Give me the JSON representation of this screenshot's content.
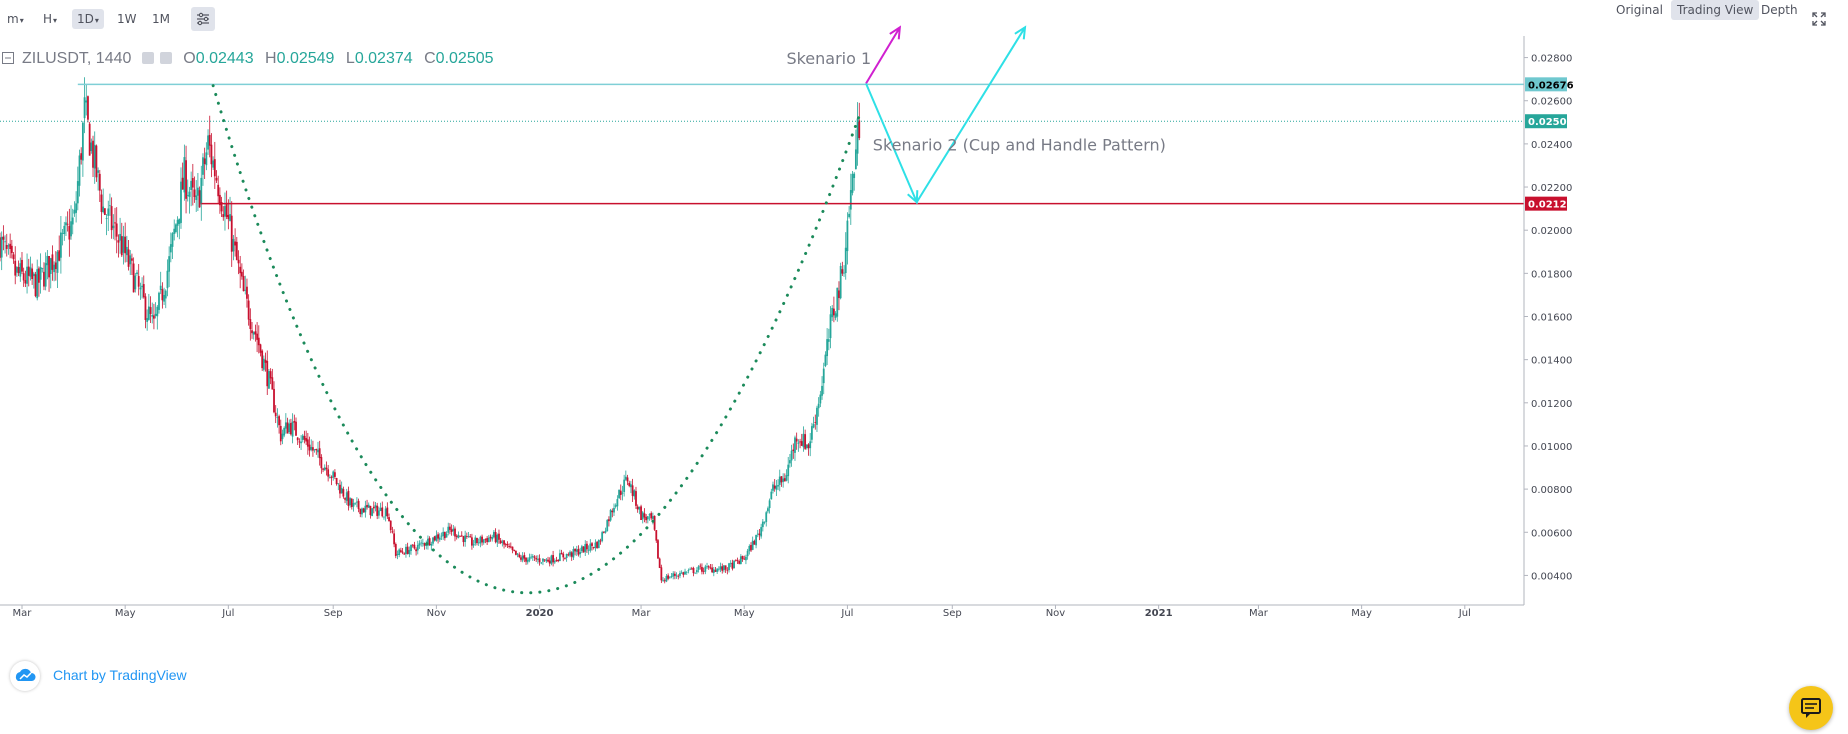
{
  "toolbar": {
    "intervals": [
      {
        "label": "m",
        "dropdown": true
      },
      {
        "label": "H",
        "dropdown": true
      },
      {
        "label": "1D",
        "dropdown": true,
        "active": true
      },
      {
        "label": "1W",
        "dropdown": false
      },
      {
        "label": "1M",
        "dropdown": false
      }
    ],
    "views": [
      {
        "label": "Original",
        "active": false
      },
      {
        "label": "Trading View",
        "active": true
      },
      {
        "label": "Depth",
        "active": false
      }
    ]
  },
  "legend": {
    "symbol": "ZILUSDT, 1440",
    "open_label": "O",
    "open": "0.02443",
    "high_label": "H",
    "high": "0.02549",
    "low_label": "L",
    "low": "0.02374",
    "close_label": "C",
    "close": "0.02505"
  },
  "attribution": "Chart by TradingView",
  "chart_data": {
    "type": "candlestick",
    "title": "",
    "ylim": [
      0.003,
      0.029
    ],
    "y_ticks": [
      "0.02800",
      "0.02600",
      "0.02400",
      "0.02200",
      "0.02000",
      "0.01800",
      "0.01600",
      "0.01400",
      "0.01200",
      "0.01000",
      "0.00800",
      "0.00600",
      "0.00400"
    ],
    "x_ticks": [
      {
        "label": "Mar",
        "date": "2019-03-01"
      },
      {
        "label": "May",
        "date": "2019-05-01"
      },
      {
        "label": "Jul",
        "date": "2019-07-01"
      },
      {
        "label": "Sep",
        "date": "2019-09-01"
      },
      {
        "label": "Nov",
        "date": "2019-11-01"
      },
      {
        "label": "2020",
        "date": "2020-01-01",
        "bold": true
      },
      {
        "label": "Mar",
        "date": "2020-03-01"
      },
      {
        "label": "May",
        "date": "2020-05-01"
      },
      {
        "label": "Jul",
        "date": "2020-07-01"
      },
      {
        "label": "Sep",
        "date": "2020-09-01"
      },
      {
        "label": "Nov",
        "date": "2020-11-01"
      },
      {
        "label": "2021",
        "date": "2021-01-01",
        "bold": true
      },
      {
        "label": "Mar",
        "date": "2021-03-01"
      },
      {
        "label": "May",
        "date": "2021-05-01"
      },
      {
        "label": "Jul",
        "date": "2021-07-01"
      }
    ],
    "xlim": [
      "2019-02-16",
      "2021-08-05"
    ],
    "price_path": [
      [
        "2019-02-16",
        0.0195
      ],
      [
        "2019-02-25",
        0.018
      ],
      [
        "2019-03-10",
        0.0175
      ],
      [
        "2019-03-22",
        0.019
      ],
      [
        "2019-04-01",
        0.0205
      ],
      [
        "2019-04-07",
        0.0255
      ],
      [
        "2019-04-18",
        0.021
      ],
      [
        "2019-04-28",
        0.0195
      ],
      [
        "2019-05-10",
        0.017
      ],
      [
        "2019-05-18",
        0.0155
      ],
      [
        "2019-05-27",
        0.0185
      ],
      [
        "2019-06-05",
        0.0225
      ],
      [
        "2019-06-12",
        0.021
      ],
      [
        "2019-06-19",
        0.024
      ],
      [
        "2019-06-24",
        0.0225
      ],
      [
        "2019-07-02",
        0.02
      ],
      [
        "2019-07-10",
        0.017
      ],
      [
        "2019-07-18",
        0.015
      ],
      [
        "2019-07-25",
        0.013
      ],
      [
        "2019-08-01",
        0.0105
      ],
      [
        "2019-08-06",
        0.011
      ],
      [
        "2019-08-18",
        0.01
      ],
      [
        "2019-08-30",
        0.0088
      ],
      [
        "2019-09-12",
        0.0072
      ],
      [
        "2019-09-25",
        0.007
      ],
      [
        "2019-10-03",
        0.007
      ],
      [
        "2019-10-08",
        0.005
      ],
      [
        "2019-10-20",
        0.0053
      ],
      [
        "2019-11-01",
        0.0058
      ],
      [
        "2019-11-10",
        0.0061
      ],
      [
        "2019-11-22",
        0.0055
      ],
      [
        "2019-12-05",
        0.0058
      ],
      [
        "2019-12-20",
        0.0048
      ],
      [
        "2020-01-05",
        0.0047
      ],
      [
        "2020-01-20",
        0.005
      ],
      [
        "2020-02-05",
        0.0055
      ],
      [
        "2020-02-15",
        0.0075
      ],
      [
        "2020-02-22",
        0.0085
      ],
      [
        "2020-03-01",
        0.0068
      ],
      [
        "2020-03-08",
        0.0065
      ],
      [
        "2020-03-13",
        0.0038
      ],
      [
        "2020-03-20",
        0.004
      ],
      [
        "2020-04-05",
        0.0043
      ],
      [
        "2020-04-20",
        0.0043
      ],
      [
        "2020-05-01",
        0.0048
      ],
      [
        "2020-05-10",
        0.006
      ],
      [
        "2020-05-18",
        0.008
      ],
      [
        "2020-05-25",
        0.0085
      ],
      [
        "2020-06-01",
        0.0105
      ],
      [
        "2020-06-08",
        0.01
      ],
      [
        "2020-06-15",
        0.0125
      ],
      [
        "2020-06-22",
        0.016
      ],
      [
        "2020-06-28",
        0.018
      ],
      [
        "2020-07-02",
        0.021
      ],
      [
        "2020-07-05",
        0.023
      ],
      [
        "2020-07-08",
        0.02505
      ]
    ],
    "horizontal_lines": [
      {
        "price": 0.02676,
        "label": "0.02676",
        "color": "#7fcfd6",
        "style": "solid",
        "start": "2019-04-03"
      },
      {
        "price": 0.02505,
        "label": "0.02505",
        "color": "#26a69a",
        "style": "dotted"
      },
      {
        "price": 0.02123,
        "label": "0.02123",
        "color": "#c8102e",
        "style": "solid",
        "start": "2019-06-15"
      }
    ],
    "cup_curve": {
      "color": "#1b8a5a",
      "points": [
        [
          "2019-06-22",
          0.0267
        ],
        [
          "2019-12-22",
          0.0032
        ],
        [
          "2020-07-08",
          0.0253
        ]
      ]
    },
    "annotations": [
      {
        "text": "Skenario 1",
        "date": "2020-06-20",
        "price": 0.0277
      },
      {
        "text": "Skenario 2 (Cup and Handle Pattern)",
        "date": "2020-07-16",
        "price": 0.0237
      }
    ],
    "arrows": [
      {
        "name": "skenario-1",
        "color": "#d020d0",
        "points": [
          [
            "2020-07-12",
            0.0268
          ],
          [
            "2020-08-01",
            0.0294
          ]
        ]
      },
      {
        "name": "skenario-2",
        "color": "#2ee0e6",
        "points": [
          [
            "2020-07-12",
            0.0268
          ],
          [
            "2020-08-11",
            0.0213
          ],
          [
            "2020-10-14",
            0.0294
          ]
        ]
      }
    ],
    "colors": {
      "up": "#26a69a",
      "down": "#c8102e",
      "grid": "#e0e3eb",
      "axis_text": "#434651"
    }
  }
}
